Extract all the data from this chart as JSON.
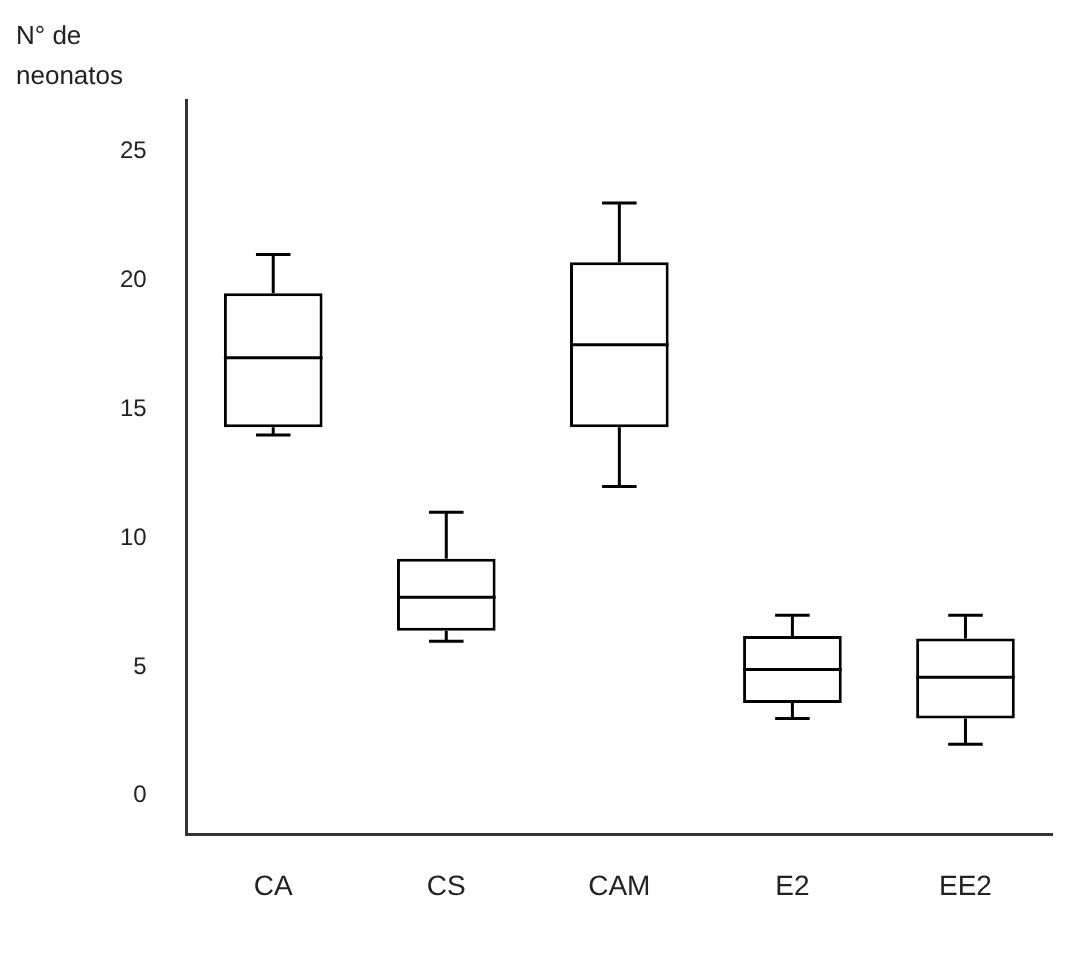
{
  "chart_data": {
    "type": "box",
    "ylabel": "N° de neonatos",
    "categories": [
      "CA",
      "CS",
      "CAM",
      "E2",
      "EE2"
    ],
    "boxes": [
      {
        "low": 14,
        "q1": 14.3,
        "median": 17,
        "q3": 19.5,
        "high": 21
      },
      {
        "low": 6,
        "q1": 6.4,
        "median": 7.7,
        "q3": 9.2,
        "high": 11
      },
      {
        "low": 12,
        "q1": 14.3,
        "median": 17.5,
        "q3": 20.7,
        "high": 23
      },
      {
        "low": 3,
        "q1": 3.6,
        "median": 4.9,
        "q3": 6.2,
        "high": 7
      },
      {
        "low": 2,
        "q1": 3,
        "median": 4.6,
        "q3": 6.1,
        "high": 7
      }
    ],
    "color": "#000000",
    "ylim": [
      -1.5,
      27
    ],
    "yticks": [
      0,
      5,
      10,
      15,
      20,
      25
    ],
    "grid": false,
    "legend": false
  }
}
